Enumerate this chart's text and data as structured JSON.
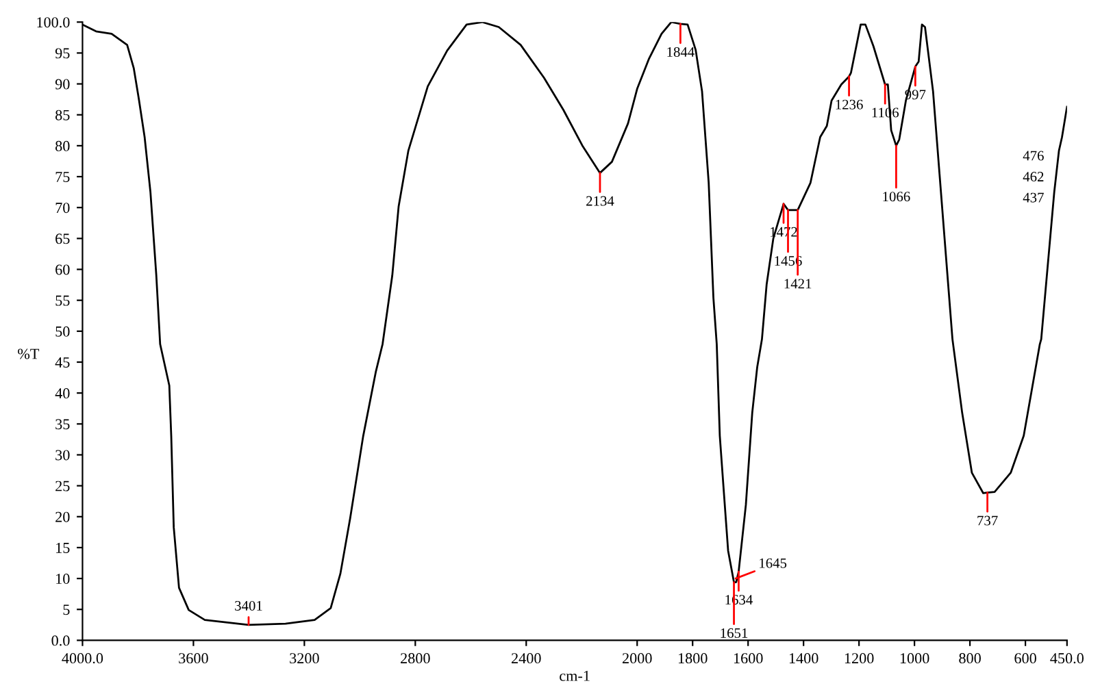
{
  "chart_data": {
    "type": "line",
    "xlabel": "cm-1",
    "ylabel": "%T",
    "xlim": [
      4000,
      450
    ],
    "ylim": [
      0,
      100
    ],
    "xticks": [
      {
        "value": 4000,
        "label": "4000.0"
      },
      3600,
      3200,
      2800,
      2400,
      2000,
      1800,
      1600,
      1400,
      1200,
      1000,
      800,
      600,
      {
        "value": 450,
        "label": "450.0"
      }
    ],
    "yticks": [
      {
        "value": 0,
        "label": "0.0"
      },
      5,
      10,
      15,
      20,
      25,
      30,
      35,
      40,
      45,
      50,
      55,
      60,
      65,
      70,
      75,
      80,
      85,
      90,
      95,
      {
        "value": 100,
        "label": "100.0"
      }
    ],
    "grid": false,
    "marker": "none",
    "line_style": "solid",
    "series": [
      {
        "color": "#000000",
        "x": [
          4000,
          3951,
          3895,
          3839,
          3815,
          3797,
          3776,
          3755,
          3734,
          3720,
          3687,
          3680,
          3671,
          3652,
          3617,
          3559,
          3401,
          3268,
          3163,
          3105,
          3070,
          3035,
          2988,
          2942,
          2918,
          2883,
          2860,
          2825,
          2755,
          2685,
          2615,
          2559,
          2499,
          2420,
          2336,
          2266,
          2196,
          2134,
          2091,
          2033,
          2000,
          1958,
          1912,
          1877,
          1844,
          1818,
          1789,
          1766,
          1742,
          1725,
          1713,
          1702,
          1690,
          1672,
          1651,
          1643,
          1634,
          1608,
          1585,
          1567,
          1550,
          1533,
          1509,
          1472,
          1456,
          1421,
          1375,
          1340,
          1316,
          1299,
          1264,
          1236,
          1229,
          1194,
          1177,
          1148,
          1106,
          1096,
          1084,
          1066,
          1055,
          1031,
          997,
          985,
          973,
          962,
          933,
          863,
          828,
          793,
          752,
          737,
          711,
          653,
          606,
          548,
          543,
          496,
          479,
          468,
          450
        ],
        "values": [
          99.6,
          98.5,
          98.1,
          96.3,
          92.5,
          87.6,
          81.4,
          72.5,
          59.1,
          47.9,
          41.2,
          33.0,
          18.3,
          8.5,
          4.9,
          3.3,
          2.5,
          2.7,
          3.3,
          5.2,
          10.8,
          19.7,
          33.0,
          43.5,
          47.9,
          59.0,
          70.2,
          79.2,
          89.6,
          95.4,
          99.6,
          100.0,
          99.2,
          96.3,
          91.0,
          85.8,
          79.9,
          75.6,
          77.4,
          83.6,
          89.2,
          94.0,
          98.1,
          100.0,
          99.7,
          99.6,
          95.5,
          88.8,
          74.0,
          55.4,
          47.9,
          33.1,
          25.6,
          14.5,
          9.4,
          9.4,
          11.1,
          21.9,
          36.8,
          44.2,
          48.7,
          57.6,
          65.0,
          70.6,
          69.6,
          69.6,
          74.0,
          81.4,
          83.2,
          87.3,
          89.9,
          91.2,
          91.8,
          99.6,
          99.6,
          96.1,
          89.9,
          89.9,
          82.5,
          80.0,
          81.0,
          87.3,
          92.8,
          93.6,
          99.6,
          99.2,
          88.8,
          48.7,
          36.8,
          27.1,
          23.8,
          23.9,
          24.0,
          27.1,
          33.1,
          47.9,
          48.7,
          72.5,
          79.2,
          81.4,
          86.3
        ]
      }
    ],
    "annotations": [
      {
        "text": "3401",
        "x": 3401,
        "y": 2.5
      },
      {
        "text": "2134",
        "x": 2134,
        "y": 75.6
      },
      {
        "text": "1844",
        "x": 1844,
        "y": 99.7
      },
      {
        "text": "1634",
        "x": 1634,
        "y": 11.1
      },
      {
        "text": "1651",
        "x": 1651,
        "y": 9.4
      },
      {
        "text": "1645",
        "x": 1645,
        "y": 10.0
      },
      {
        "text": "1472",
        "x": 1472,
        "y": 70.6
      },
      {
        "text": "1456",
        "x": 1456,
        "y": 69.6
      },
      {
        "text": "1421",
        "x": 1421,
        "y": 69.6
      },
      {
        "text": "1236",
        "x": 1236,
        "y": 91.2
      },
      {
        "text": "1106",
        "x": 1106,
        "y": 89.9
      },
      {
        "text": "1066",
        "x": 1066,
        "y": 80.0
      },
      {
        "text": "997",
        "x": 997,
        "y": 92.8
      },
      {
        "text": "737",
        "x": 737,
        "y": 23.9
      },
      "476",
      "462",
      "437"
    ]
  }
}
